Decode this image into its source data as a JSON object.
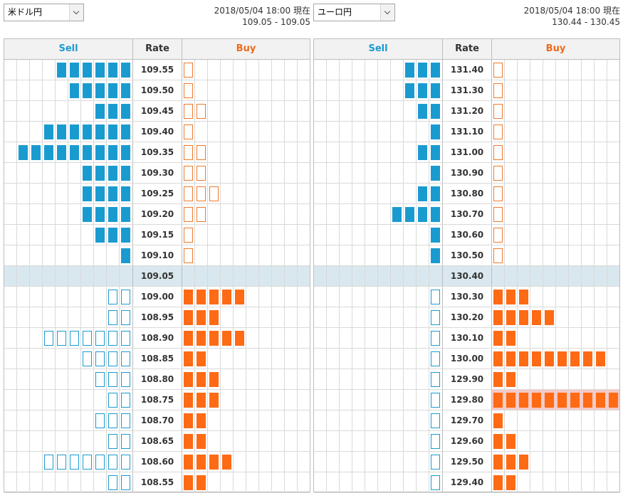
{
  "panels": [
    {
      "pair": "米ドル円",
      "timestamp": "2018/05/04 18:00 現在",
      "bid_ask": "109.05 - 109.05",
      "headers": {
        "sell": "Sell",
        "rate": "Rate",
        "buy": "Buy"
      },
      "rows": [
        {
          "rate": "109.55",
          "sell": 6,
          "sell_filled": true,
          "buy": 1,
          "buy_filled": false
        },
        {
          "rate": "109.50",
          "sell": 5,
          "sell_filled": true,
          "buy": 1,
          "buy_filled": false
        },
        {
          "rate": "109.45",
          "sell": 3,
          "sell_filled": true,
          "buy": 2,
          "buy_filled": false
        },
        {
          "rate": "109.40",
          "sell": 7,
          "sell_filled": true,
          "buy": 1,
          "buy_filled": false
        },
        {
          "rate": "109.35",
          "sell": 9,
          "sell_filled": true,
          "buy": 2,
          "buy_filled": false
        },
        {
          "rate": "109.30",
          "sell": 4,
          "sell_filled": true,
          "buy": 2,
          "buy_filled": false
        },
        {
          "rate": "109.25",
          "sell": 4,
          "sell_filled": true,
          "buy": 3,
          "buy_filled": false
        },
        {
          "rate": "109.20",
          "sell": 4,
          "sell_filled": true,
          "buy": 2,
          "buy_filled": false
        },
        {
          "rate": "109.15",
          "sell": 3,
          "sell_filled": true,
          "buy": 1,
          "buy_filled": false
        },
        {
          "rate": "109.10",
          "sell": 1,
          "sell_filled": true,
          "buy": 1,
          "buy_filled": false
        },
        {
          "rate": "109.05",
          "sell": 0,
          "sell_filled": true,
          "buy": 0,
          "buy_filled": true,
          "current": true
        },
        {
          "rate": "109.00",
          "sell": 2,
          "sell_filled": false,
          "buy": 5,
          "buy_filled": true
        },
        {
          "rate": "108.95",
          "sell": 2,
          "sell_filled": false,
          "buy": 3,
          "buy_filled": true
        },
        {
          "rate": "108.90",
          "sell": 7,
          "sell_filled": false,
          "buy": 5,
          "buy_filled": true
        },
        {
          "rate": "108.85",
          "sell": 4,
          "sell_filled": false,
          "buy": 2,
          "buy_filled": true
        },
        {
          "rate": "108.80",
          "sell": 3,
          "sell_filled": false,
          "buy": 3,
          "buy_filled": true
        },
        {
          "rate": "108.75",
          "sell": 2,
          "sell_filled": false,
          "buy": 3,
          "buy_filled": true
        },
        {
          "rate": "108.70",
          "sell": 3,
          "sell_filled": false,
          "buy": 2,
          "buy_filled": true
        },
        {
          "rate": "108.65",
          "sell": 2,
          "sell_filled": false,
          "buy": 2,
          "buy_filled": true
        },
        {
          "rate": "108.60",
          "sell": 7,
          "sell_filled": false,
          "buy": 4,
          "buy_filled": true
        },
        {
          "rate": "108.55",
          "sell": 2,
          "sell_filled": false,
          "buy": 2,
          "buy_filled": true
        }
      ]
    },
    {
      "pair": "ユーロ円",
      "timestamp": "2018/05/04 18:00 現在",
      "bid_ask": "130.44 - 130.45",
      "headers": {
        "sell": "Sell",
        "rate": "Rate",
        "buy": "Buy"
      },
      "rows": [
        {
          "rate": "131.40",
          "sell": 3,
          "sell_filled": true,
          "buy": 1,
          "buy_filled": false
        },
        {
          "rate": "131.30",
          "sell": 3,
          "sell_filled": true,
          "buy": 1,
          "buy_filled": false
        },
        {
          "rate": "131.20",
          "sell": 2,
          "sell_filled": true,
          "buy": 1,
          "buy_filled": false
        },
        {
          "rate": "131.10",
          "sell": 1,
          "sell_filled": true,
          "buy": 1,
          "buy_filled": false
        },
        {
          "rate": "131.00",
          "sell": 2,
          "sell_filled": true,
          "buy": 1,
          "buy_filled": false
        },
        {
          "rate": "130.90",
          "sell": 1,
          "sell_filled": true,
          "buy": 1,
          "buy_filled": false
        },
        {
          "rate": "130.80",
          "sell": 2,
          "sell_filled": true,
          "buy": 1,
          "buy_filled": false
        },
        {
          "rate": "130.70",
          "sell": 4,
          "sell_filled": true,
          "buy": 1,
          "buy_filled": false
        },
        {
          "rate": "130.60",
          "sell": 1,
          "sell_filled": true,
          "buy": 1,
          "buy_filled": false
        },
        {
          "rate": "130.50",
          "sell": 1,
          "sell_filled": true,
          "buy": 1,
          "buy_filled": false
        },
        {
          "rate": "130.40",
          "sell": 0,
          "sell_filled": true,
          "buy": 0,
          "buy_filled": true,
          "current": true
        },
        {
          "rate": "130.30",
          "sell": 1,
          "sell_filled": false,
          "buy": 3,
          "buy_filled": true
        },
        {
          "rate": "130.20",
          "sell": 1,
          "sell_filled": false,
          "buy": 5,
          "buy_filled": true
        },
        {
          "rate": "130.10",
          "sell": 1,
          "sell_filled": false,
          "buy": 2,
          "buy_filled": true
        },
        {
          "rate": "130.00",
          "sell": 1,
          "sell_filled": false,
          "buy": 9,
          "buy_filled": true
        },
        {
          "rate": "129.90",
          "sell": 1,
          "sell_filled": false,
          "buy": 2,
          "buy_filled": true
        },
        {
          "rate": "129.80",
          "sell": 1,
          "sell_filled": false,
          "buy": 10,
          "buy_filled": true,
          "highlight": true
        },
        {
          "rate": "129.70",
          "sell": 1,
          "sell_filled": false,
          "buy": 1,
          "buy_filled": true
        },
        {
          "rate": "129.60",
          "sell": 1,
          "sell_filled": false,
          "buy": 2,
          "buy_filled": true
        },
        {
          "rate": "129.50",
          "sell": 1,
          "sell_filled": false,
          "buy": 3,
          "buy_filled": true
        },
        {
          "rate": "129.40",
          "sell": 1,
          "sell_filled": false,
          "buy": 2,
          "buy_filled": true
        }
      ]
    }
  ],
  "colors": {
    "sell": "#1a9bd0",
    "buy": "#ff6a14",
    "current_row": "#d9e8ee",
    "highlight_row": "#f6c8c4"
  }
}
